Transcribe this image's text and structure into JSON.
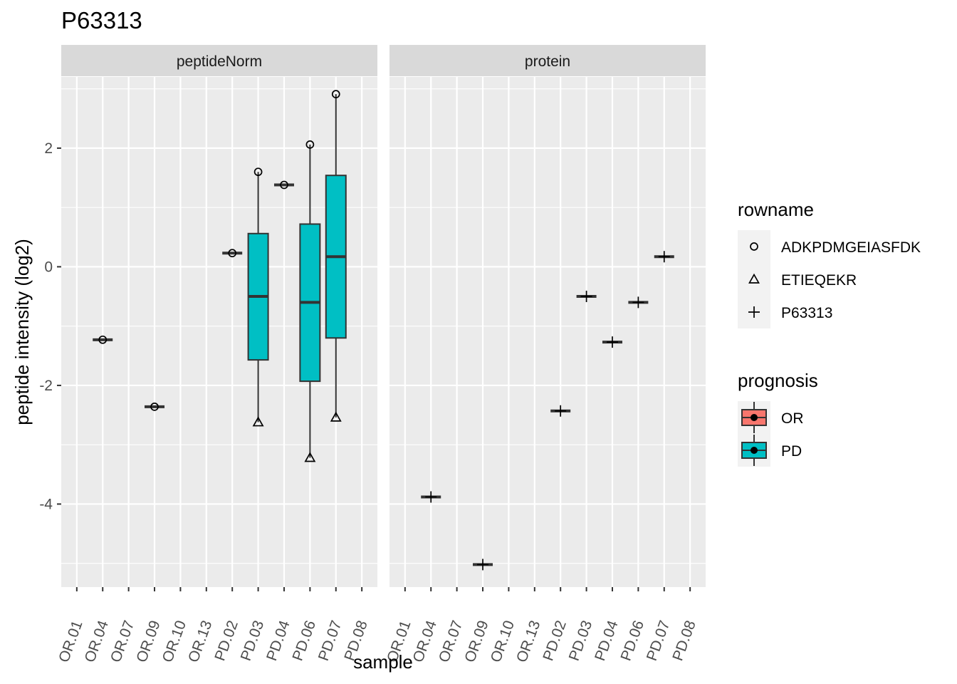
{
  "chart_data": {
    "type": "boxplot",
    "title": "P63313",
    "xlabel": "sample",
    "ylabel": "peptide intensity (log2)",
    "ylim": [
      -5.4,
      3.2
    ],
    "y_ticks": [
      -4,
      -2,
      0,
      2
    ],
    "grid": true,
    "legend_position": "right",
    "categories": [
      "OR.01",
      "OR.04",
      "OR.07",
      "OR.09",
      "OR.10",
      "OR.13",
      "PD.02",
      "PD.03",
      "PD.04",
      "PD.06",
      "PD.07",
      "PD.08"
    ],
    "colors": {
      "OR": "#F8766D",
      "PD": "#00BFC4"
    },
    "legend": {
      "rowname": {
        "title": "rowname",
        "items": [
          "ADKPDMGEIASFDK",
          "ETIEQEKR",
          "P63313"
        ]
      },
      "prognosis": {
        "title": "prognosis",
        "items": [
          "OR",
          "PD"
        ]
      }
    },
    "panels": [
      {
        "name": "peptideNorm",
        "boxes": [
          {
            "sample": "OR.04",
            "group": "OR",
            "q1": -1.23,
            "median": -1.23,
            "q3": -1.23,
            "lower": -1.23,
            "upper": -1.23
          },
          {
            "sample": "OR.09",
            "group": "OR",
            "q1": -2.36,
            "median": -2.36,
            "q3": -2.36,
            "lower": -2.36,
            "upper": -2.36
          },
          {
            "sample": "PD.02",
            "group": "PD",
            "q1": 0.23,
            "median": 0.23,
            "q3": 0.23,
            "lower": 0.23,
            "upper": 0.23
          },
          {
            "sample": "PD.03",
            "group": "PD",
            "q1": -1.57,
            "median": -0.5,
            "q3": 0.56,
            "lower": -2.62,
            "upper": 1.6
          },
          {
            "sample": "PD.04",
            "group": "PD",
            "q1": 1.38,
            "median": 1.38,
            "q3": 1.38,
            "lower": 1.38,
            "upper": 1.38
          },
          {
            "sample": "PD.06",
            "group": "PD",
            "q1": -1.93,
            "median": -0.6,
            "q3": 0.72,
            "lower": -3.22,
            "upper": 2.06
          },
          {
            "sample": "PD.07",
            "group": "PD",
            "q1": -1.2,
            "median": 0.17,
            "q3": 1.54,
            "lower": -2.54,
            "upper": 2.91
          }
        ],
        "points": [
          {
            "sample": "OR.04",
            "rowname": "ADKPDMGEIASFDK",
            "y": -1.23
          },
          {
            "sample": "OR.09",
            "rowname": "ADKPDMGEIASFDK",
            "y": -2.36
          },
          {
            "sample": "PD.02",
            "rowname": "ADKPDMGEIASFDK",
            "y": 0.23
          },
          {
            "sample": "PD.03",
            "rowname": "ADKPDMGEIASFDK",
            "y": 1.6
          },
          {
            "sample": "PD.03",
            "rowname": "ETIEQEKR",
            "y": -2.62
          },
          {
            "sample": "PD.04",
            "rowname": "ADKPDMGEIASFDK",
            "y": 1.38
          },
          {
            "sample": "PD.06",
            "rowname": "ADKPDMGEIASFDK",
            "y": 2.06
          },
          {
            "sample": "PD.06",
            "rowname": "ETIEQEKR",
            "y": -3.22
          },
          {
            "sample": "PD.07",
            "rowname": "ADKPDMGEIASFDK",
            "y": 2.91
          },
          {
            "sample": "PD.07",
            "rowname": "ETIEQEKR",
            "y": -2.54
          }
        ]
      },
      {
        "name": "protein",
        "boxes": [
          {
            "sample": "OR.04",
            "group": "OR",
            "q1": -3.88,
            "median": -3.88,
            "q3": -3.88,
            "lower": -3.88,
            "upper": -3.88
          },
          {
            "sample": "OR.09",
            "group": "OR",
            "q1": -5.02,
            "median": -5.02,
            "q3": -5.02,
            "lower": -5.02,
            "upper": -5.02
          },
          {
            "sample": "PD.02",
            "group": "PD",
            "q1": -2.43,
            "median": -2.43,
            "q3": -2.43,
            "lower": -2.43,
            "upper": -2.43
          },
          {
            "sample": "PD.03",
            "group": "PD",
            "q1": -0.5,
            "median": -0.5,
            "q3": -0.5,
            "lower": -0.5,
            "upper": -0.5
          },
          {
            "sample": "PD.04",
            "group": "PD",
            "q1": -1.27,
            "median": -1.27,
            "q3": -1.27,
            "lower": -1.27,
            "upper": -1.27
          },
          {
            "sample": "PD.06",
            "group": "PD",
            "q1": -0.6,
            "median": -0.6,
            "q3": -0.6,
            "lower": -0.6,
            "upper": -0.6
          },
          {
            "sample": "PD.07",
            "group": "PD",
            "q1": 0.17,
            "median": 0.17,
            "q3": 0.17,
            "lower": 0.17,
            "upper": 0.17
          }
        ],
        "points": [
          {
            "sample": "OR.04",
            "rowname": "P63313",
            "y": -3.88
          },
          {
            "sample": "OR.09",
            "rowname": "P63313",
            "y": -5.02
          },
          {
            "sample": "PD.02",
            "rowname": "P63313",
            "y": -2.43
          },
          {
            "sample": "PD.03",
            "rowname": "P63313",
            "y": -0.5
          },
          {
            "sample": "PD.04",
            "rowname": "P63313",
            "y": -1.27
          },
          {
            "sample": "PD.06",
            "rowname": "P63313",
            "y": -0.6
          },
          {
            "sample": "PD.07",
            "rowname": "P63313",
            "y": 0.17
          }
        ]
      }
    ]
  }
}
